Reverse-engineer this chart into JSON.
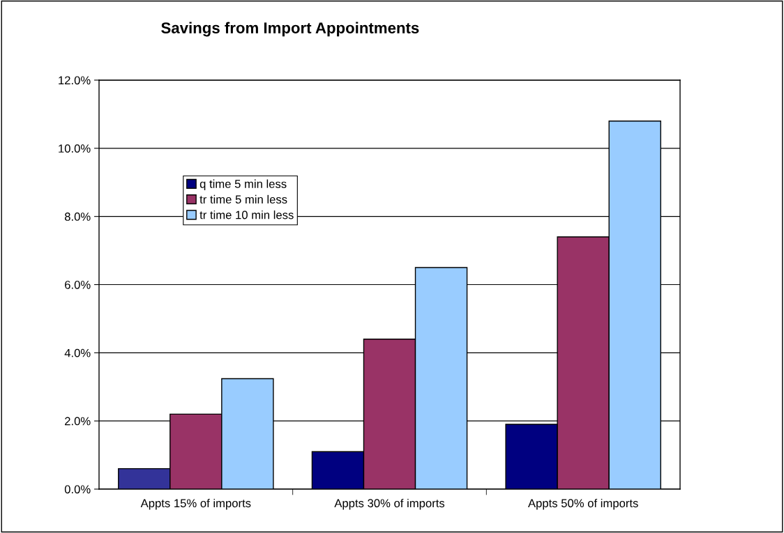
{
  "chart_data": {
    "type": "bar",
    "title": "Savings from Import Appointments",
    "categories": [
      "Appts 15% of imports",
      "Appts 30% of imports",
      "Appts 50% of imports"
    ],
    "series": [
      {
        "name": "q time 5 min less",
        "color": "#000080",
        "colors": [
          "#333399",
          "#000080",
          "#000080"
        ],
        "values": [
          0.6,
          1.1,
          1.9
        ]
      },
      {
        "name": "tr time 5 min less",
        "color": "#993366",
        "values": [
          2.2,
          4.4,
          7.4
        ]
      },
      {
        "name": "tr time 10 min less",
        "color": "#99ccff",
        "values": [
          3.24,
          6.5,
          10.8
        ]
      }
    ],
    "ylim": [
      0,
      12
    ],
    "yticks": [
      {
        "value": 0,
        "label": "0.0%"
      },
      {
        "value": 2,
        "label": "2.0%"
      },
      {
        "value": 4,
        "label": "4.0%"
      },
      {
        "value": 6,
        "label": "6.0%"
      },
      {
        "value": 8,
        "label": "8.0%"
      },
      {
        "value": 10,
        "label": "10.0%"
      },
      {
        "value": 12,
        "label": "12.0%"
      }
    ],
    "grid": "y",
    "legend": "top left"
  }
}
